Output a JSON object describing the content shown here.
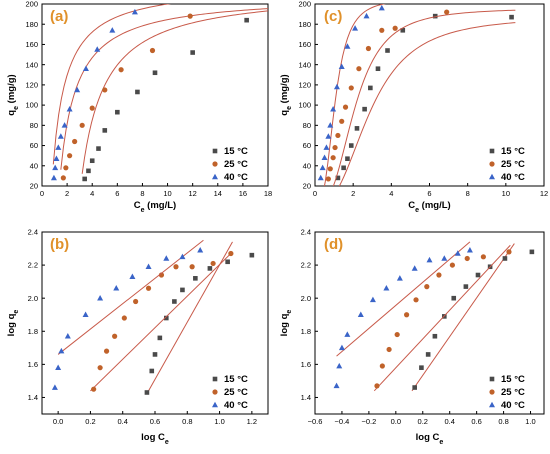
{
  "figure": {
    "colors": {
      "s15": "#4a4a4a",
      "s25": "#c0622a",
      "s40": "#3a64c8",
      "fit": "#c85a4a",
      "letter": "#E0912A"
    }
  },
  "chart_data": [
    {
      "panel": "(a)",
      "type": "scatter",
      "xlabel": "Ce (mg/L)",
      "ylabel": "qe (mg/g)",
      "xlim": [
        0,
        18
      ],
      "ylim": [
        20,
        200
      ],
      "xticks": [
        0,
        2,
        4,
        6,
        8,
        10,
        12,
        14,
        16,
        18
      ],
      "yticks": [
        20,
        40,
        60,
        80,
        100,
        120,
        140,
        160,
        180,
        200
      ],
      "legend": "bottom-right",
      "fit": "langmuir",
      "series": [
        {
          "name": "15 °C",
          "marker": "square",
          "color": "#4a4a4a",
          "fit_qm": 205,
          "fit_k": 0.55,
          "fit_x0": 3.2,
          "x": [
            3.4,
            3.7,
            4.0,
            4.5,
            5.0,
            6.0,
            7.6,
            9.0,
            12.0,
            16.3
          ],
          "y": [
            27,
            35,
            45,
            57,
            75,
            93,
            113,
            132,
            152,
            184
          ]
        },
        {
          "name": "25 °C",
          "marker": "circle",
          "color": "#c0622a",
          "fit_qm": 200,
          "fit_k": 0.78,
          "fit_x0": 1.5,
          "x": [
            1.7,
            1.9,
            2.2,
            2.6,
            3.2,
            4.0,
            5.0,
            6.3,
            8.8,
            11.8
          ],
          "y": [
            28,
            38,
            50,
            64,
            80,
            97,
            115,
            135,
            154,
            188
          ]
        },
        {
          "name": "40 °C",
          "marker": "triangle",
          "color": "#3a64c8",
          "fit_qm": 210,
          "fit_k": 1.0,
          "fit_x0": 0.9,
          "x": [
            0.95,
            1.05,
            1.15,
            1.3,
            1.5,
            1.8,
            2.2,
            2.8,
            3.5,
            4.4,
            5.6,
            7.4
          ],
          "y": [
            28,
            38,
            47,
            58,
            69,
            80,
            96,
            115,
            136,
            155,
            174,
            192
          ]
        }
      ]
    },
    {
      "panel": "(c)",
      "type": "scatter",
      "xlabel": "Ce (mg/L)",
      "ylabel": "qe (mg/g)",
      "xlim": [
        0,
        12
      ],
      "ylim": [
        20,
        200
      ],
      "xticks": [
        0,
        2,
        4,
        6,
        8,
        10,
        12
      ],
      "yticks": [
        20,
        40,
        60,
        80,
        100,
        120,
        140,
        160,
        180,
        200
      ],
      "legend": "bottom-right",
      "fit": "sigmoid",
      "series": [
        {
          "name": "15 °C",
          "marker": "square",
          "color": "#4a4a4a",
          "fit_qm": 188,
          "fit_c": 2.9,
          "fit_n": 2.6,
          "x": [
            1.2,
            1.5,
            1.7,
            1.9,
            2.2,
            2.6,
            2.9,
            3.3,
            3.8,
            4.6,
            6.3,
            10.3
          ],
          "y": [
            28,
            38,
            47,
            60,
            77,
            96,
            117,
            136,
            154,
            174,
            188,
            187
          ]
        },
        {
          "name": "25 °C",
          "marker": "circle",
          "color": "#c0622a",
          "fit_qm": 196,
          "fit_c": 2.1,
          "fit_n": 2.8,
          "x": [
            0.7,
            0.8,
            0.95,
            1.05,
            1.2,
            1.4,
            1.6,
            1.9,
            2.3,
            2.8,
            3.5,
            4.2,
            6.9
          ],
          "y": [
            27,
            37,
            48,
            58,
            70,
            84,
            98,
            117,
            136,
            156,
            174,
            176,
            192
          ]
        },
        {
          "name": "40 °C",
          "marker": "triangle",
          "color": "#3a64c8",
          "fit_qm": 205,
          "fit_c": 1.05,
          "fit_n": 3.0,
          "x": [
            0.3,
            0.4,
            0.5,
            0.6,
            0.7,
            0.8,
            0.95,
            1.15,
            1.4,
            1.7,
            2.1,
            2.7,
            3.5
          ],
          "y": [
            28,
            38,
            48,
            58,
            69,
            80,
            96,
            118,
            138,
            158,
            176,
            188,
            196
          ]
        }
      ]
    },
    {
      "panel": "(b)",
      "type": "scatter",
      "xlabel": "log Ce",
      "ylabel": "log qe",
      "xlim": [
        -0.1,
        1.3
      ],
      "ylim": [
        1.3,
        2.4
      ],
      "xticks": [
        0.0,
        0.2,
        0.4,
        0.6,
        0.8,
        1.0,
        1.2
      ],
      "yticks": [
        1.4,
        1.6,
        1.8,
        2.0,
        2.2,
        2.4
      ],
      "legend": "bottom-right",
      "fit": "linear",
      "series": [
        {
          "name": "15 °C",
          "marker": "square",
          "color": "#4a4a4a",
          "fit_line": [
            [
              0.56,
              1.44
            ],
            [
              1.08,
              2.34
            ]
          ],
          "x": [
            0.55,
            0.58,
            0.6,
            0.63,
            0.67,
            0.72,
            0.77,
            0.85,
            0.94,
            1.05,
            1.2
          ],
          "y": [
            1.43,
            1.56,
            1.66,
            1.76,
            1.88,
            1.98,
            2.05,
            2.12,
            2.18,
            2.22,
            2.26
          ]
        },
        {
          "name": "25 °C",
          "marker": "circle",
          "color": "#c0622a",
          "fit_line": [
            [
              0.2,
              1.44
            ],
            [
              1.07,
              2.27
            ]
          ],
          "x": [
            0.22,
            0.26,
            0.3,
            0.35,
            0.41,
            0.48,
            0.56,
            0.64,
            0.73,
            0.83,
            0.96,
            1.07
          ],
          "y": [
            1.45,
            1.58,
            1.68,
            1.77,
            1.88,
            1.98,
            2.06,
            2.14,
            2.19,
            2.19,
            2.21,
            2.27
          ]
        },
        {
          "name": "40 °C",
          "marker": "triangle",
          "color": "#3a64c8",
          "fit_line": [
            [
              0.0,
              1.66
            ],
            [
              0.9,
              2.35
            ]
          ],
          "x": [
            -0.02,
            0.0,
            0.02,
            0.06,
            0.17,
            0.26,
            0.36,
            0.46,
            0.56,
            0.67,
            0.77,
            0.88
          ],
          "y": [
            1.46,
            1.58,
            1.68,
            1.77,
            1.9,
            2.0,
            2.06,
            2.13,
            2.19,
            2.24,
            2.25,
            2.29
          ]
        }
      ]
    },
    {
      "panel": "(d)",
      "type": "scatter",
      "xlabel": "log Ce",
      "ylabel": "log qe",
      "xlim": [
        -0.6,
        1.1
      ],
      "ylim": [
        1.3,
        2.4
      ],
      "xticks": [
        -0.6,
        -0.4,
        -0.2,
        0.0,
        0.2,
        0.4,
        0.6,
        0.8,
        1.0
      ],
      "yticks": [
        1.4,
        1.6,
        1.8,
        2.0,
        2.2,
        2.4
      ],
      "legend": "bottom-right",
      "fit": "linear",
      "series": [
        {
          "name": "15 °C",
          "marker": "square",
          "color": "#4a4a4a",
          "fit_line": [
            [
              0.12,
              1.44
            ],
            [
              0.88,
              2.33
            ]
          ],
          "x": [
            0.14,
            0.19,
            0.24,
            0.29,
            0.36,
            0.43,
            0.52,
            0.61,
            0.7,
            0.81,
            1.01
          ],
          "y": [
            1.46,
            1.58,
            1.66,
            1.77,
            1.89,
            2.0,
            2.07,
            2.14,
            2.19,
            2.24,
            2.28
          ]
        },
        {
          "name": "25 °C",
          "marker": "circle",
          "color": "#c0622a",
          "fit_line": [
            [
              -0.16,
              1.44
            ],
            [
              0.85,
              2.32
            ]
          ],
          "x": [
            -0.14,
            -0.1,
            -0.05,
            0.01,
            0.08,
            0.15,
            0.23,
            0.32,
            0.42,
            0.53,
            0.65,
            0.84
          ],
          "y": [
            1.47,
            1.59,
            1.69,
            1.78,
            1.9,
            1.99,
            2.07,
            2.14,
            2.2,
            2.24,
            2.25,
            2.28
          ]
        },
        {
          "name": "40 °C",
          "marker": "triangle",
          "color": "#3a64c8",
          "fit_line": [
            [
              -0.44,
              1.65
            ],
            [
              0.55,
              2.34
            ]
          ],
          "x": [
            -0.44,
            -0.42,
            -0.4,
            -0.36,
            -0.26,
            -0.17,
            -0.07,
            0.03,
            0.14,
            0.25,
            0.36,
            0.46,
            0.55
          ],
          "y": [
            1.47,
            1.59,
            1.7,
            1.78,
            1.9,
            1.99,
            2.06,
            2.12,
            2.18,
            2.23,
            2.24,
            2.27,
            2.29
          ]
        }
      ]
    }
  ]
}
